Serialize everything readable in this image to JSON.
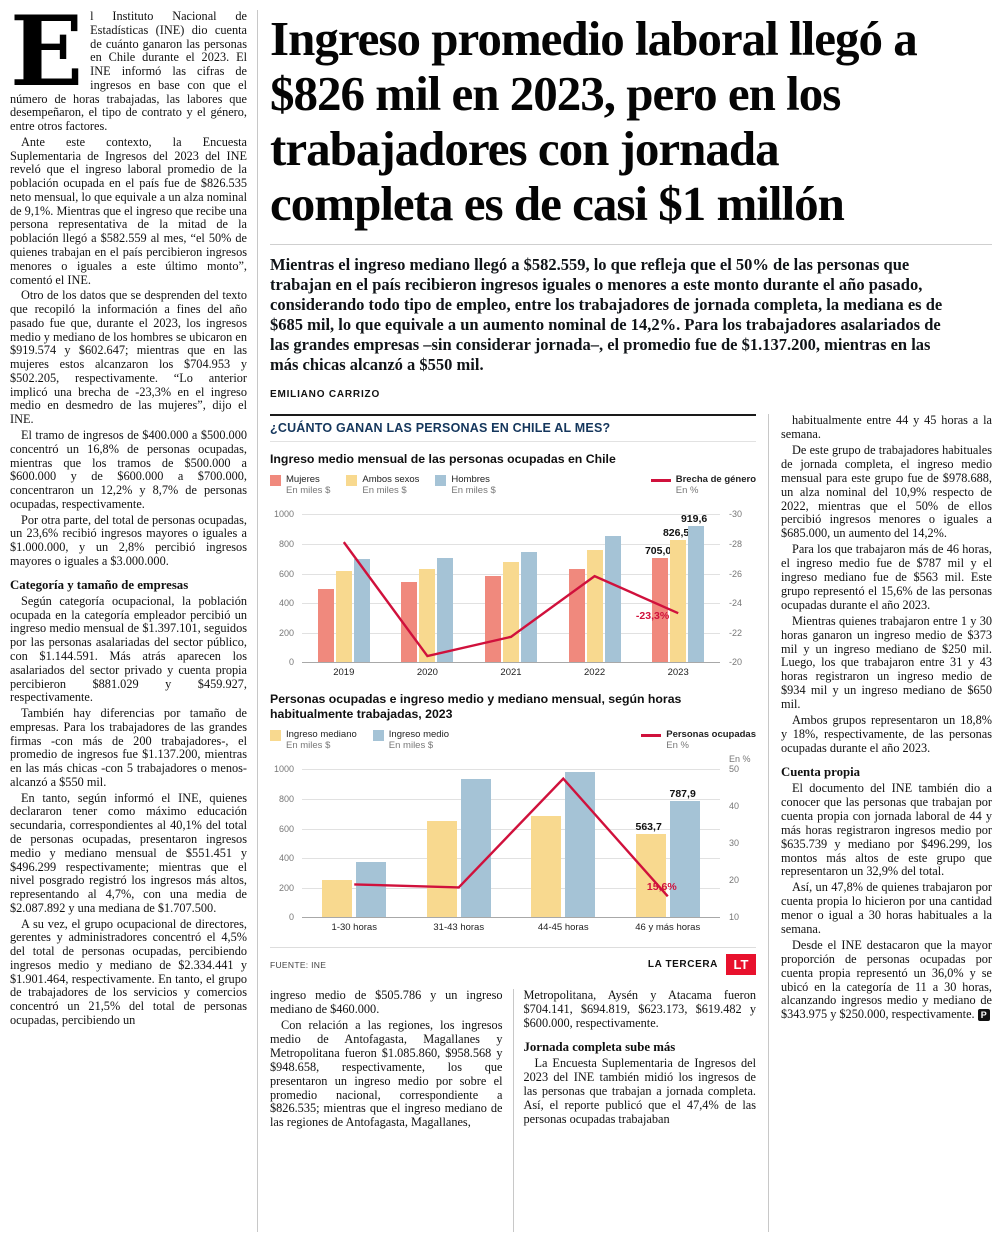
{
  "article": {
    "headline": "Ingreso promedio laboral llegó a $826 mil en 2023, pero en los trabajadores con jornada completa es de casi $1 millón",
    "lead": "Mientras el ingreso mediano llegó a $582.559, lo que refleja que el 50% de las personas que trabajan en el país recibieron ingresos iguales o menores a este monto durante el año pasado, considerando todo tipo de empleo, entre los trabajadores de jornada completa, la mediana es de $685 mil, lo que equivale a un aumento nominal de 14,2%. Para los trabajadores asalariados de las grandes empresas –sin considerar jornada–, el promedio fue de $1.137.200, mientras en las más chicas alcanzó a $550 mil.",
    "byline": "EMILIANO CARRIZO",
    "left_column": {
      "dropcap": "E",
      "p1": "l Instituto Nacional de Estadísticas (INE) dio cuenta de cuánto ganaron las personas en Chile durante el 2023. El INE informó las cifras de ingresos en base con que el número de horas trabajadas, las labores que desempeñaron, el tipo de contrato y el género, entre otros factores.",
      "p2": "Ante este contexto, la Encuesta Suplementaria de Ingresos del 2023 del INE reveló que el ingreso laboral promedio de la población ocupada en el país fue de $826.535 neto mensual, lo que equivale a un alza nominal de 9,1%. Mientras que el ingreso que recibe una persona representativa de la mitad de la población llegó a $582.559 al mes, “el 50% de quienes trabajan en el país percibieron ingresos menores o iguales a este último monto”, comentó el INE.",
      "p3": "Otro de los datos que se desprenden del texto que recopiló la información a fines del año pasado fue que, durante el 2023, los ingresos medio y mediano de los hombres se ubicaron en $919.574 y $602.647; mientras que en las mujeres estos alcanzaron los $704.953 y $502.205, respectivamente. “Lo anterior implicó una brecha de -23,3% en el ingreso medio en desmedro de las mujeres”, dijo el INE.",
      "p4": "El tramo de ingresos de $400.000 a $500.000 concentró un 16,8% de personas ocupadas, mientras que los tramos de $500.000 a $600.000 y de $600.000 a $700.000, concentraron un 12,2% y 8,7% de personas ocupadas, respectivamente.",
      "p5": "Por otra parte, del total de personas ocupadas, un 23,6% recibió ingresos mayores o iguales a $1.000.000, y un 2,8% percibió ingresos mayores o iguales a $3.000.000.",
      "subhead": "Categoría y tamaño de empresas",
      "p6": "Según categoría ocupacional, la población ocupada en la categoría empleador percibió un ingreso medio mensual de $1.397.101, seguidos por las personas asalariadas del sector público, con $1.144.591. Más atrás aparecen los asalariados del sector privado y cuenta propia percibieron $881.029 y $459.927, respectivamente.",
      "p7": "También hay diferencias por tamaño de empresas. Para los trabajadores de las grandes firmas -con más de 200 trabajadores-, el promedio de ingresos fue $1.137.200, mientras en las más chicas -con 5 trabajadores o menos- alcanzó a $550 mil.",
      "p8": "En tanto, según informó el INE, quienes declararon tener como máximo educación secundaria, correspondientes al 40,1% del total de personas ocupadas, presentaron ingresos medio y mediano mensual de $551.451 y $496.299 respectivamente; mientras que el nivel posgrado registró los ingresos más altos, representando al 4,7%, con una media de $2.087.892 y una mediana de $1.707.500.",
      "p9": "A su vez, el grupo ocupacional de directores, gerentes y administradores concentró el 4,5% del total de personas ocupadas, percibiendo ingresos medio y mediano de $2.334.441 y $1.901.464, respectivamente. En tanto, el grupo de trabajadores de los servicios y comercios concentró un 21,5% del total de personas ocupadas, percibiendo un"
    },
    "mid_column_1": {
      "p1": "ingreso medio de $505.786 y un ingreso mediano de $460.000.",
      "p2": "Con relación a las regiones, los ingresos medio de Antofagasta, Magallanes y Metropolitana fueron $1.085.860, $958.568 y $948.658, respectivamente, los que presentaron un ingreso medio por sobre el promedio nacional, correspondiente a $826.535; mientras que el ingreso mediano de las regiones de Antofagasta, Magallanes,"
    },
    "mid_column_2": {
      "p1": "Metropolitana, Aysén y Atacama fueron $704.141, $694.819, $623.173, $619.482 y $600.000, respectivamente.",
      "subhead": "Jornada completa sube más",
      "p2": "La Encuesta Suplementaria de Ingresos del 2023 del INE también midió los ingresos de las personas que trabajan a jornada completa. Así, el reporte publicó que el 47,4% de las personas ocupadas trabajaban"
    },
    "right_column": {
      "p1": "habitualmente entre 44 y 45 horas a la semana.",
      "p2": "De este grupo de trabajadores habituales de jornada completa, el ingreso medio mensual para este grupo fue de $978.688, un alza nominal del 10,9% respecto de 2022, mientras que el 50% de ellos percibió ingresos menores o iguales a $685.000, un aumento del 14,2%.",
      "p3": "Para los que trabajaron más de 46 horas, el ingreso medio fue de $787 mil y el ingreso mediano fue de $563 mil. Este grupo representó el 15,6% de las personas ocupadas durante el año 2023.",
      "p4": "Mientras quienes trabajaron entre 1 y 30 horas ganaron un ingreso medio de $373 mil y un ingreso mediano de $250 mil. Luego, los que trabajaron entre 31 y 43 horas registraron un ingreso medio de $934 mil y un ingreso mediano de $650 mil.",
      "p5": "Ambos grupos representaron un 18,8% y 18%, respectivamente, de las personas ocupadas durante el año 2023.",
      "subhead": "Cuenta propia",
      "p6": "El documento del INE también dio a conocer que las personas que trabajan por cuenta propia con jornada laboral de 44 y más horas registraron ingresos medio por $635.739 y mediano por $496.299, los montos más altos de este grupo que representaron un 32,9% del total.",
      "p7": "Así, un 47,8% de quienes trabajaron por cuenta propia lo hicieron por una cantidad menor o igual a 30 horas habituales a la semana.",
      "p8": "Desde el INE destacaron que la mayor proporción de personas ocupadas por cuenta propia representó un 36,0% y se ubicó en la categoría de 11 a 30 horas, alcanzando ingresos medio y mediano de $343.975 y $250.000, respectivamente.",
      "end_mark": "P"
    }
  },
  "infographic": {
    "kicker": "¿CUÁNTO GANAN LAS PERSONAS EN CHILE AL MES?",
    "source": "FUENTE: INE",
    "brand": "LA TERCERA",
    "logo_text": "LT",
    "accent_red": "#e8112d",
    "navy": "#14365c"
  },
  "chart_data": [
    {
      "type": "bar",
      "title": "Ingreso medio mensual de las personas ocupadas en Chile",
      "categories": [
        "2019",
        "2020",
        "2021",
        "2022",
        "2023"
      ],
      "series": [
        {
          "name": "Mujeres",
          "unit": "En miles $",
          "color": "#f0897d",
          "values": [
            495,
            540,
            587,
            633,
            705.0
          ]
        },
        {
          "name": "Ambos sexos",
          "unit": "En miles $",
          "color": "#f8d98f",
          "values": [
            620,
            633,
            680,
            760,
            826.5
          ]
        },
        {
          "name": "Hombres",
          "unit": "En miles $",
          "color": "#a5c3d6",
          "values": [
            700,
            707,
            747,
            853,
            919.6
          ]
        }
      ],
      "line": {
        "name": "Brecha de género",
        "unit": "En %",
        "color": "#d0113c",
        "values": [
          -28.1,
          -20.4,
          -21.7,
          -25.8,
          -23.3
        ],
        "label_last": "-23,3%",
        "label_pos": "left"
      },
      "bar_labels_last": [
        "705,0",
        "826,5",
        "919,6"
      ],
      "y_left": {
        "min": 0,
        "max": 1000,
        "ticks": [
          0,
          200,
          400,
          600,
          800,
          1000
        ]
      },
      "y_right": {
        "min": -20,
        "max": -30,
        "ticks": [
          -20,
          -22,
          -24,
          -26,
          -28,
          -30
        ]
      },
      "grid": true,
      "legend_position": "top"
    },
    {
      "type": "bar",
      "title": "Personas ocupadas e ingreso medio y mediano mensual, según horas habitualmente trabajadas, 2023",
      "categories": [
        "1-30 horas",
        "31-43 horas",
        "44-45 horas",
        "46 y más horas"
      ],
      "series": [
        {
          "name": "Ingreso mediano",
          "unit": "En miles $",
          "color": "#f8d98f",
          "values": [
            250,
            650,
            685,
            563.7
          ]
        },
        {
          "name": "Ingreso medio",
          "unit": "En miles $",
          "color": "#a5c3d6",
          "values": [
            373,
            934,
            979,
            787.9
          ]
        }
      ],
      "line": {
        "name": "Personas ocupadas",
        "unit": "En %",
        "color": "#d0113c",
        "values": [
          18.8,
          18,
          47.4,
          15.6
        ],
        "label_last": "15,6%",
        "label_pos": "above"
      },
      "bar_labels_last": [
        "563,7",
        "787,9"
      ],
      "y_left": {
        "min": 0,
        "max": 1000,
        "ticks": [
          0,
          200,
          400,
          600,
          800,
          1000
        ]
      },
      "y_right": {
        "min": 10,
        "max": 50,
        "ticks": [
          10,
          20,
          30,
          40,
          50
        ],
        "label": "En %"
      },
      "grid": true,
      "legend_position": "top"
    }
  ]
}
